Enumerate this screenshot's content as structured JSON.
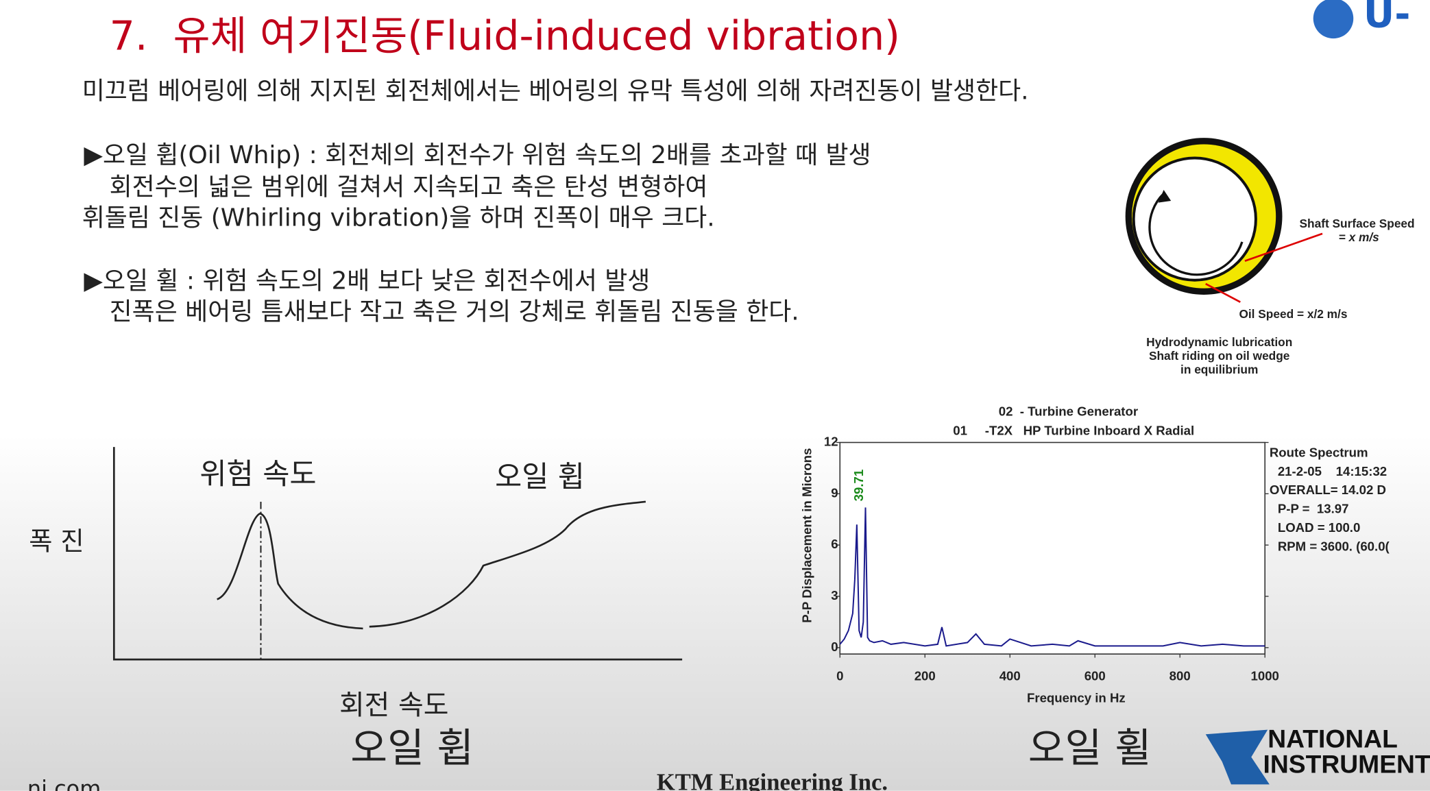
{
  "header": {
    "title": "7.  유체 여기진동(Fluid-induced vibration)",
    "logo_text": "U-"
  },
  "body": {
    "intro": "미끄럼 베어링에 의해 지지된 회전체에서는 베어링의 유막 특성에 의해 자려진동이 발생한다.",
    "oil_whip": [
      "▶오일 휩(Oil Whip) : 회전체의 회전수가 위험 속도의 2배를 초과할 때 발생",
      "회전수의 넓은 범위에 걸쳐서 지속되고 축은 탄성 변형하여",
      "휘돌림 진동 (Whirling vibration)을 하며 진폭이 매우 크다."
    ],
    "oil_whirl": [
      "▶오일 휠 : 위험 속도의 2배 보다 낮은 회전수에서 발생",
      "진폭은 베어링 틈새보다 작고 축은 거의 강체로 휘돌림 진동을 한다."
    ]
  },
  "bearing_figure": {
    "shaft_speed": [
      "Shaft Surface Speed",
      "= x m/s"
    ],
    "oil_speed": "Oil Speed = x/2 m/s",
    "caption": [
      "Hydrodynamic lubrication",
      "Shaft riding on oil wedge",
      "in equilibrium"
    ]
  },
  "left_figure": {
    "critical_speed": "위험 속도",
    "whip_label": "오일 휩",
    "y_label": "폭 진",
    "x_label": "회전 속도",
    "caption": "오일 휩"
  },
  "chart_data": {
    "type": "line",
    "title": "02  - Turbine Generator",
    "subtitle": "01     -T2X   HP Turbine Inboard X Radial",
    "x_label": "Frequency in Hz",
    "y_label": "P-P Displacement in Microns",
    "peak_label": "39.71",
    "info": [
      "Route Spectrum",
      "21-2-05    14:15:32",
      "OVERALL= 14.02 D",
      "P-P =  13.97",
      "LOAD = 100.0",
      "RPM = 3600. (60.0("
    ],
    "caption": "오일 휠",
    "color": "#1a1a8c",
    "x": [
      0,
      10,
      20,
      30,
      35,
      39.71,
      45,
      50,
      55,
      60,
      65,
      70,
      80,
      100,
      120,
      150,
      200,
      230,
      240,
      250,
      300,
      320,
      340,
      380,
      400,
      450,
      500,
      540,
      560,
      600,
      650,
      700,
      760,
      800,
      850,
      900,
      950,
      1000
    ],
    "values": [
      0.2,
      0.5,
      1.0,
      2.0,
      4.0,
      7.2,
      1.0,
      0.6,
      1.5,
      8.2,
      0.6,
      0.4,
      0.3,
      0.4,
      0.2,
      0.3,
      0.1,
      0.2,
      1.2,
      0.1,
      0.3,
      0.8,
      0.2,
      0.1,
      0.5,
      0.1,
      0.2,
      0.1,
      0.4,
      0.1,
      0.1,
      0.1,
      0.1,
      0.3,
      0.1,
      0.2,
      0.1,
      0.1
    ],
    "xlim": [
      0,
      1000
    ],
    "ylim": [
      0,
      12
    ],
    "xticks": [
      0,
      200,
      400,
      600,
      800,
      1000
    ],
    "yticks": [
      0,
      3,
      6,
      9,
      12
    ]
  },
  "footer": {
    "ni_logo": [
      "NATIONAL",
      "INSTRUMENTS"
    ],
    "company": "KTM Engineering Inc.",
    "url": "ni.com"
  }
}
